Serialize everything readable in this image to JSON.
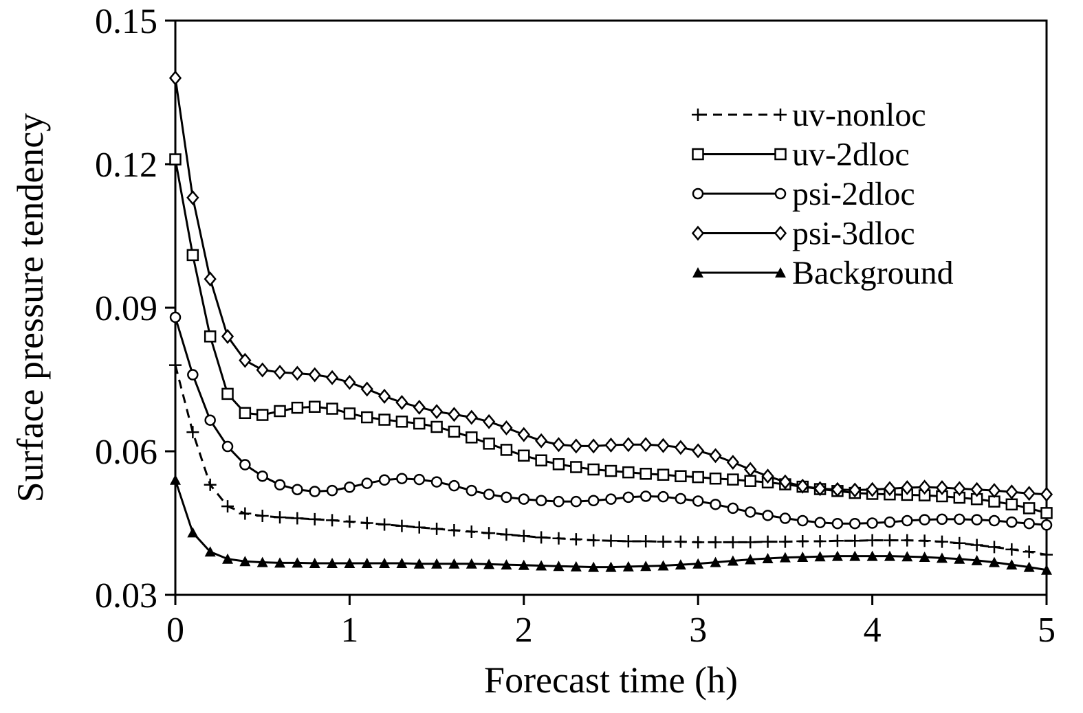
{
  "colors": {
    "foreground": "#000000",
    "background": "#ffffff"
  },
  "chart_data": {
    "type": "line",
    "title": "",
    "xlabel": "Forecast time (h)",
    "ylabel": "Surface pressure tendency",
    "xlim": [
      0,
      5
    ],
    "ylim": [
      0.03,
      0.15
    ],
    "xticks": [
      0,
      1,
      2,
      3,
      4,
      5
    ],
    "xtick_labels": [
      "0",
      "1",
      "2",
      "3",
      "4",
      "5"
    ],
    "yticks": [
      0.03,
      0.06,
      0.09,
      0.12,
      0.15
    ],
    "ytick_labels": [
      "0.03",
      "0.06",
      "0.09",
      "0.12",
      "0.15"
    ],
    "grid": false,
    "legend_position": "upper-right-inside",
    "x": [
      0,
      0.1,
      0.2,
      0.3,
      0.4,
      0.5,
      0.6,
      0.7,
      0.8,
      0.9,
      1,
      1.1,
      1.2,
      1.3,
      1.4,
      1.5,
      1.6,
      1.7,
      1.8,
      1.9,
      2,
      2.1,
      2.2,
      2.3,
      2.4,
      2.5,
      2.6,
      2.7,
      2.8,
      2.9,
      3,
      3.1,
      3.2,
      3.3,
      3.4,
      3.5,
      3.6,
      3.7,
      3.8,
      3.9,
      4,
      4.1,
      4.2,
      4.3,
      4.4,
      4.5,
      4.6,
      4.7,
      4.8,
      4.9,
      5
    ],
    "series": [
      {
        "name": "uv-nonloc",
        "marker": "plus",
        "line": "dashed",
        "color": "#000000",
        "values": [
          0.078,
          0.064,
          0.053,
          0.0485,
          0.047,
          0.0465,
          0.0462,
          0.046,
          0.0458,
          0.0456,
          0.0453,
          0.045,
          0.0447,
          0.0444,
          0.0441,
          0.0438,
          0.0435,
          0.0432,
          0.0429,
          0.0426,
          0.0423,
          0.042,
          0.0418,
          0.0416,
          0.0414,
          0.0413,
          0.0412,
          0.0412,
          0.0411,
          0.0411,
          0.041,
          0.041,
          0.041,
          0.041,
          0.0411,
          0.0411,
          0.0412,
          0.0412,
          0.0413,
          0.0413,
          0.0414,
          0.0414,
          0.0414,
          0.0413,
          0.0411,
          0.0408,
          0.0404,
          0.04,
          0.0395,
          0.039,
          0.0384
        ]
      },
      {
        "name": "uv-2dloc",
        "marker": "square",
        "line": "solid",
        "color": "#000000",
        "values": [
          0.121,
          0.101,
          0.084,
          0.072,
          0.068,
          0.0676,
          0.0684,
          0.0691,
          0.0693,
          0.0689,
          0.0679,
          0.0671,
          0.0666,
          0.0662,
          0.0658,
          0.0651,
          0.0641,
          0.0629,
          0.0616,
          0.0603,
          0.0591,
          0.0581,
          0.0573,
          0.0567,
          0.0562,
          0.0559,
          0.0556,
          0.0553,
          0.0551,
          0.0548,
          0.0546,
          0.0543,
          0.0541,
          0.0538,
          0.0535,
          0.0531,
          0.0526,
          0.0521,
          0.0517,
          0.0513,
          0.0511,
          0.051,
          0.0509,
          0.0508,
          0.0506,
          0.0503,
          0.05,
          0.0495,
          0.0489,
          0.0481,
          0.0471
        ]
      },
      {
        "name": "psi-2dloc",
        "marker": "circle",
        "line": "solid",
        "color": "#000000",
        "values": [
          0.088,
          0.076,
          0.0665,
          0.061,
          0.0572,
          0.0548,
          0.053,
          0.052,
          0.0516,
          0.0518,
          0.0525,
          0.0533,
          0.054,
          0.0543,
          0.0541,
          0.0536,
          0.0528,
          0.0518,
          0.051,
          0.0504,
          0.05,
          0.0497,
          0.0495,
          0.0495,
          0.0497,
          0.05,
          0.0504,
          0.0506,
          0.0505,
          0.0501,
          0.0496,
          0.0489,
          0.0481,
          0.0473,
          0.0466,
          0.046,
          0.0455,
          0.0451,
          0.0449,
          0.0449,
          0.045,
          0.0452,
          0.0455,
          0.0457,
          0.0458,
          0.0458,
          0.0457,
          0.0455,
          0.0452,
          0.0449,
          0.0446
        ]
      },
      {
        "name": "psi-3dloc",
        "marker": "diamond",
        "line": "solid",
        "color": "#000000",
        "values": [
          0.138,
          0.113,
          0.096,
          0.084,
          0.079,
          0.077,
          0.0765,
          0.0763,
          0.076,
          0.0754,
          0.0744,
          0.073,
          0.0715,
          0.0702,
          0.0692,
          0.0683,
          0.0677,
          0.0671,
          0.0662,
          0.0649,
          0.0635,
          0.0622,
          0.0614,
          0.0611,
          0.0611,
          0.0613,
          0.0614,
          0.0614,
          0.0612,
          0.0608,
          0.0601,
          0.0591,
          0.0577,
          0.0562,
          0.0548,
          0.0536,
          0.0527,
          0.0522,
          0.052,
          0.0519,
          0.052,
          0.0522,
          0.0524,
          0.0525,
          0.0524,
          0.0522,
          0.052,
          0.0518,
          0.0515,
          0.0512,
          0.051
        ]
      },
      {
        "name": "Background",
        "marker": "triangle",
        "line": "solid",
        "color": "#000000",
        "values": [
          0.054,
          0.043,
          0.039,
          0.0375,
          0.037,
          0.0368,
          0.0367,
          0.0367,
          0.0366,
          0.0366,
          0.0366,
          0.0366,
          0.0366,
          0.0366,
          0.0365,
          0.0365,
          0.0365,
          0.0365,
          0.0364,
          0.0363,
          0.0362,
          0.0361,
          0.036,
          0.0359,
          0.0358,
          0.0358,
          0.0359,
          0.036,
          0.0361,
          0.0363,
          0.0365,
          0.0368,
          0.0371,
          0.0374,
          0.0376,
          0.0378,
          0.0379,
          0.038,
          0.0381,
          0.0381,
          0.0381,
          0.0381,
          0.038,
          0.0379,
          0.0377,
          0.0375,
          0.0372,
          0.0368,
          0.0363,
          0.0358,
          0.0352
        ]
      }
    ]
  }
}
